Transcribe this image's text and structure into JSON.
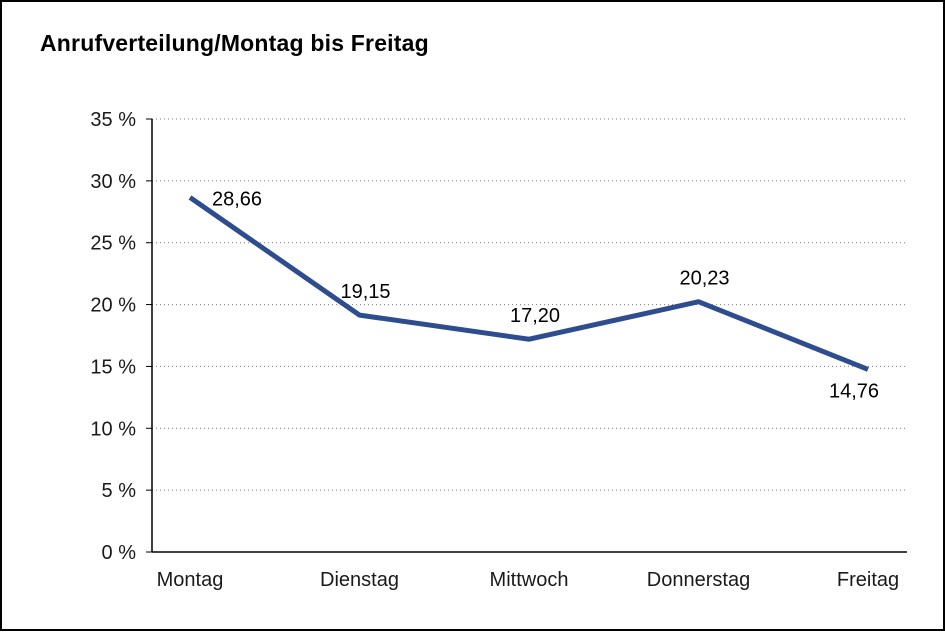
{
  "title": "Anrufverteilung/Montag bis Freitag",
  "chart_data": {
    "type": "line",
    "title": "Anrufverteilung/Montag bis Freitag",
    "categories": [
      "Montag",
      "Dienstag",
      "Mittwoch",
      "Donnerstag",
      "Freitag"
    ],
    "values": [
      28.66,
      19.15,
      17.2,
      20.23,
      14.76
    ],
    "value_labels": [
      "28,66",
      "19,15",
      "17,20",
      "20,23",
      "14,76"
    ],
    "label_positions": [
      "right",
      "above",
      "above",
      "above",
      "below"
    ],
    "xlabel": "",
    "ylabel": "",
    "ylim": [
      0,
      35
    ],
    "ytick_values": [
      0,
      5,
      10,
      15,
      20,
      25,
      30,
      35
    ],
    "ytick_labels": [
      "0 %",
      "5 %",
      "10 %",
      "15 %",
      "20 %",
      "25 %",
      "30 %",
      "35 %"
    ],
    "grid": "horizontal-dotted",
    "legend": "none",
    "line_color": "#2e4d8e"
  }
}
